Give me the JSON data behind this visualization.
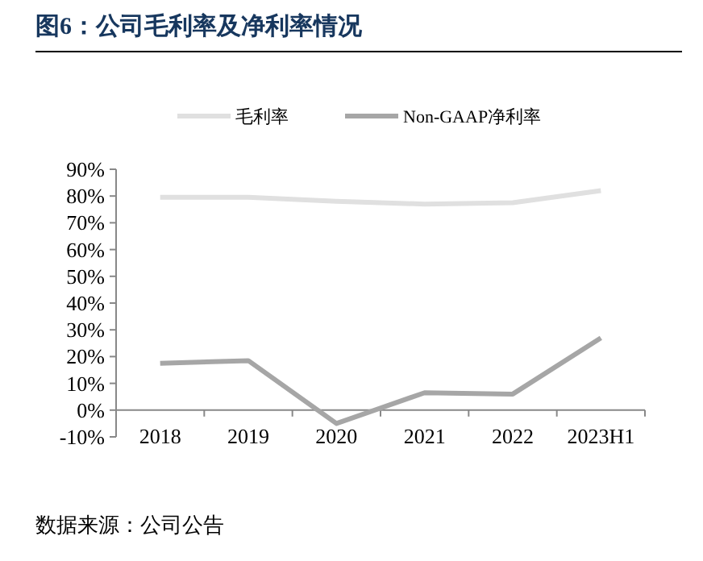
{
  "chart_data": {
    "type": "line",
    "title": "图6：公司毛利率及净利率情况",
    "categories": [
      "2018",
      "2019",
      "2020",
      "2021",
      "2022",
      "2023H1"
    ],
    "series": [
      {
        "name": "毛利率",
        "color": "#e0e0e0",
        "values": [
          79.5,
          79.5,
          78,
          77,
          77.5,
          82
        ]
      },
      {
        "name": "Non-GAAP净利率",
        "color": "#a6a6a6",
        "values": [
          17.5,
          18.5,
          -5,
          6.5,
          6,
          27
        ]
      }
    ],
    "ylim": [
      -10,
      90
    ],
    "yticks": [
      {
        "value": -10,
        "label": "-10%"
      },
      {
        "value": 0,
        "label": "0%"
      },
      {
        "value": 10,
        "label": "10%"
      },
      {
        "value": 20,
        "label": "20%"
      },
      {
        "value": 30,
        "label": "30%"
      },
      {
        "value": 40,
        "label": "40%"
      },
      {
        "value": 50,
        "label": "50%"
      },
      {
        "value": 60,
        "label": "60%"
      },
      {
        "value": 70,
        "label": "70%"
      },
      {
        "value": 80,
        "label": "80%"
      },
      {
        "value": 90,
        "label": "90%"
      }
    ],
    "legend": "top",
    "annotations": [
      "数据来源：公司公告"
    ]
  }
}
